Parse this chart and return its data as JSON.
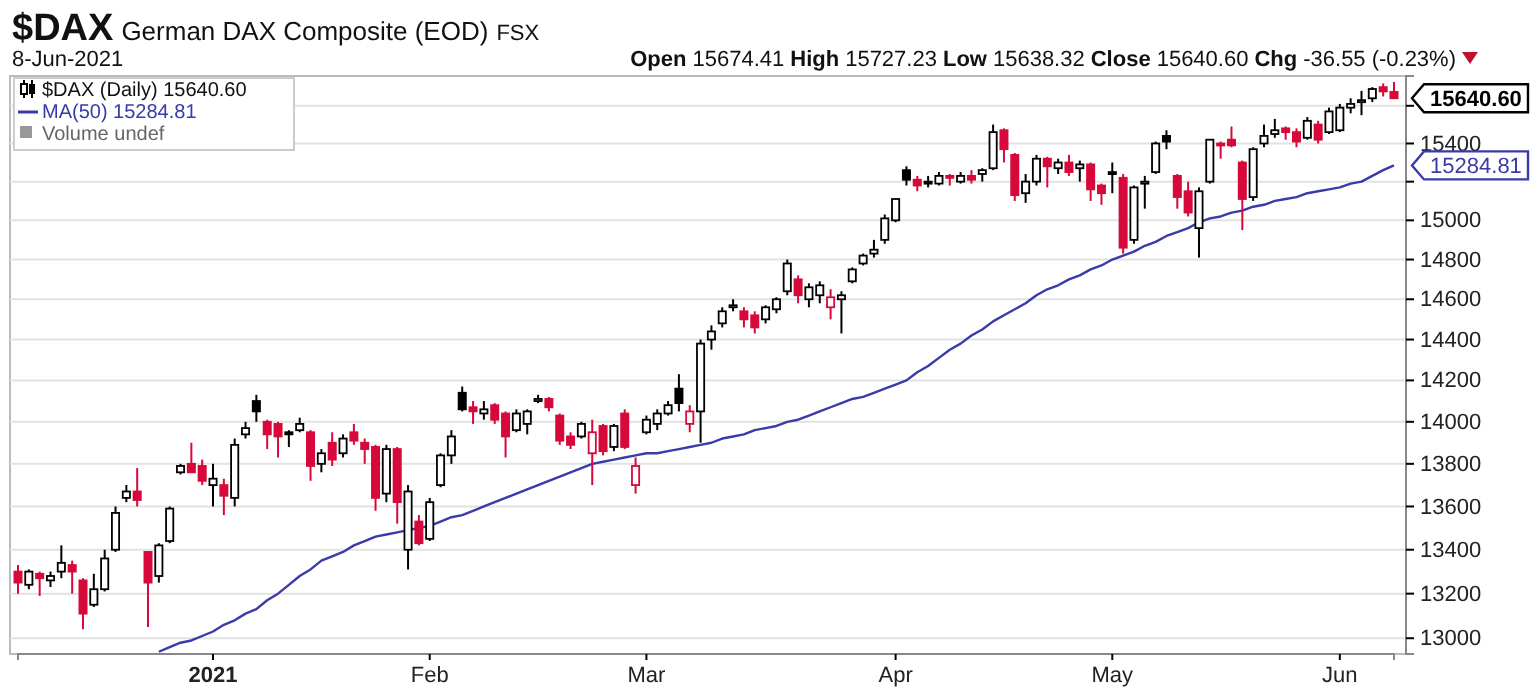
{
  "chart_data": {
    "type": "candlestick",
    "title": "$DAX German DAX Composite (EOD) FSX",
    "subtitle": "8-Jun-2021",
    "annotations": [
      "Open 15674.41 High 15727.23 Low 15638.32 Close 15640.60 Chg -36.55 (-0.23%)",
      "Volume undef",
      "15640.60",
      "15284.81"
    ],
    "categories": [
      null,
      null,
      null,
      null,
      null,
      null,
      null,
      null,
      null,
      null,
      null,
      null,
      null,
      null,
      null,
      null,
      null,
      null,
      "2021",
      null,
      null,
      null,
      null,
      null,
      null,
      null,
      null,
      null,
      null,
      null,
      null,
      null,
      null,
      null,
      null,
      null,
      null,
      null,
      "Feb",
      null,
      null,
      null,
      null,
      null,
      null,
      null,
      null,
      null,
      null,
      null,
      null,
      null,
      null,
      null,
      null,
      null,
      null,
      null,
      "Mar",
      null,
      null,
      null,
      null,
      null,
      null,
      null,
      null,
      null,
      null,
      null,
      null,
      null,
      null,
      null,
      null,
      null,
      null,
      null,
      null,
      null,
      null,
      "Apr",
      null,
      null,
      null,
      null,
      null,
      null,
      null,
      null,
      null,
      null,
      null,
      null,
      null,
      null,
      null,
      null,
      null,
      null,
      null,
      "May",
      null,
      null,
      null,
      null,
      null,
      null,
      null,
      null,
      null,
      null,
      null,
      null,
      null,
      null,
      null,
      null,
      null,
      null,
      null,
      null,
      "Jun",
      null,
      null,
      null,
      null,
      null
    ],
    "ylim": [
      12930,
      15760
    ],
    "log": true,
    "grid": "y",
    "legend": "top left",
    "yticks": [
      13000,
      13200,
      13400,
      13600,
      13800,
      14000,
      14200,
      14400,
      14600,
      14800,
      15000,
      {
        "value": 15200,
        "label": null
      },
      15400,
      {
        "value": 15600,
        "label": null
      }
    ],
    "series": [
      {
        "name": "$DAX (Daily) 15640.60",
        "ohlc": [
          [
            13300,
            13330,
            13200,
            13250
          ],
          [
            13240,
            13310,
            13220,
            13300
          ],
          [
            13290,
            13300,
            13190,
            13270
          ],
          [
            13260,
            13300,
            13230,
            13280
          ],
          [
            13300,
            13420,
            13270,
            13340
          ],
          [
            13330,
            13350,
            13200,
            13300
          ],
          [
            13260,
            13270,
            13040,
            13110
          ],
          [
            13150,
            13290,
            13140,
            13220
          ],
          [
            13220,
            13400,
            13210,
            13360
          ],
          [
            13400,
            13600,
            13390,
            13570
          ],
          [
            13640,
            13700,
            13620,
            13670
          ],
          [
            13670,
            13780,
            13600,
            13630
          ],
          [
            13390,
            13390,
            13050,
            13250
          ],
          [
            13280,
            13430,
            13250,
            13420
          ],
          [
            13440,
            13600,
            13430,
            13590
          ],
          [
            13760,
            13800,
            13750,
            13790
          ],
          [
            13800,
            13900,
            13760,
            13760
          ],
          [
            13790,
            13820,
            13700,
            13720
          ],
          [
            13700,
            13800,
            13600,
            13730
          ],
          [
            13700,
            13730,
            13560,
            13650
          ],
          [
            13640,
            13920,
            13600,
            13890
          ],
          [
            13940,
            14000,
            13920,
            13970
          ],
          [
            14100,
            14130,
            14000,
            14050
          ],
          [
            14000,
            14010,
            13870,
            13940
          ],
          [
            13990,
            14000,
            13830,
            13930
          ],
          [
            13950,
            13960,
            13880,
            13940
          ],
          [
            13960,
            14020,
            13950,
            13990
          ],
          [
            13950,
            13960,
            13720,
            13790
          ],
          [
            13800,
            13870,
            13760,
            13850
          ],
          [
            13900,
            13950,
            13790,
            13820
          ],
          [
            13850,
            13940,
            13830,
            13920
          ],
          [
            13950,
            13990,
            13890,
            13910
          ],
          [
            13900,
            13920,
            13800,
            13870
          ],
          [
            13880,
            13890,
            13580,
            13640
          ],
          [
            13660,
            13890,
            13620,
            13870
          ],
          [
            13870,
            13880,
            13520,
            13620
          ],
          [
            13400,
            13700,
            13310,
            13670
          ],
          [
            13530,
            13560,
            13420,
            13430
          ],
          [
            13450,
            13640,
            13440,
            13620
          ],
          [
            13700,
            13850,
            13690,
            13840
          ],
          [
            13840,
            13960,
            13800,
            13930
          ],
          [
            14140,
            14170,
            14050,
            14060
          ],
          [
            14070,
            14100,
            13990,
            14050
          ],
          [
            14040,
            14100,
            14010,
            14060
          ],
          [
            14080,
            14090,
            13990,
            14010
          ],
          [
            14040,
            14050,
            13830,
            13930
          ],
          [
            13960,
            14060,
            13950,
            14040
          ],
          [
            13990,
            14060,
            13940,
            14050
          ],
          [
            14100,
            14130,
            14090,
            14110
          ],
          [
            14110,
            14120,
            14050,
            14070
          ],
          [
            14030,
            14040,
            13890,
            13910
          ],
          [
            13930,
            13950,
            13870,
            13890
          ],
          [
            13930,
            14000,
            13920,
            13990
          ],
          [
            13850,
            14010,
            13700,
            13950
          ],
          [
            13980,
            13990,
            13840,
            13860
          ],
          [
            13880,
            13990,
            13860,
            13980
          ],
          [
            14040,
            14060,
            13870,
            13880
          ],
          [
            13700,
            13830,
            13660,
            13790
          ],
          [
            13950,
            14030,
            13940,
            14010
          ],
          [
            13990,
            14060,
            13960,
            14040
          ],
          [
            14040,
            14100,
            14030,
            14080
          ],
          [
            14160,
            14230,
            14050,
            14090
          ],
          [
            13990,
            14080,
            13950,
            14050
          ],
          [
            14050,
            14400,
            13900,
            14380
          ],
          [
            14400,
            14470,
            14350,
            14440
          ],
          [
            14480,
            14560,
            14460,
            14540
          ],
          [
            14560,
            14600,
            14540,
            14570
          ],
          [
            14540,
            14560,
            14460,
            14500
          ],
          [
            14520,
            14540,
            14430,
            14460
          ],
          [
            14500,
            14570,
            14480,
            14560
          ],
          [
            14550,
            14610,
            14530,
            14600
          ],
          [
            14640,
            14800,
            14620,
            14780
          ],
          [
            14700,
            14720,
            14580,
            14620
          ],
          [
            14600,
            14680,
            14560,
            14660
          ],
          [
            14620,
            14690,
            14580,
            14670
          ],
          [
            14560,
            14650,
            14500,
            14610
          ],
          [
            14600,
            14640,
            14430,
            14620
          ],
          [
            14690,
            14760,
            14680,
            14750
          ],
          [
            14780,
            14830,
            14770,
            14820
          ],
          [
            14830,
            14900,
            14810,
            14850
          ],
          [
            14900,
            15030,
            14880,
            15010
          ],
          [
            15000,
            15110,
            14990,
            15110
          ],
          [
            15260,
            15280,
            15180,
            15210
          ],
          [
            15210,
            15230,
            15150,
            15180
          ],
          [
            15200,
            15230,
            15170,
            15200
          ],
          [
            15190,
            15250,
            15180,
            15230
          ],
          [
            15230,
            15240,
            15180,
            15220
          ],
          [
            15200,
            15250,
            15190,
            15230
          ],
          [
            15230,
            15260,
            15190,
            15210
          ],
          [
            15240,
            15270,
            15200,
            15260
          ],
          [
            15270,
            15500,
            15260,
            15460
          ],
          [
            15470,
            15480,
            15300,
            15370
          ],
          [
            15340,
            15350,
            15100,
            15130
          ],
          [
            15140,
            15240,
            15090,
            15200
          ],
          [
            15200,
            15340,
            15180,
            15320
          ],
          [
            15320,
            15330,
            15170,
            15280
          ],
          [
            15270,
            15320,
            15240,
            15300
          ],
          [
            15300,
            15340,
            15230,
            15250
          ],
          [
            15270,
            15310,
            15200,
            15290
          ],
          [
            15290,
            15300,
            15100,
            15160
          ],
          [
            15180,
            15190,
            15080,
            15140
          ],
          [
            15250,
            15300,
            15140,
            15240
          ],
          [
            15220,
            15240,
            14830,
            14860
          ],
          [
            14900,
            15180,
            14880,
            15170
          ],
          [
            15190,
            15230,
            15060,
            15200
          ],
          [
            15250,
            15410,
            15240,
            15400
          ],
          [
            15440,
            15470,
            15370,
            15410
          ],
          [
            15230,
            15240,
            15060,
            15120
          ],
          [
            15150,
            15200,
            15020,
            15040
          ],
          [
            14960,
            15170,
            14810,
            15150
          ],
          [
            15200,
            15420,
            15190,
            15420
          ],
          [
            15400,
            15410,
            15320,
            15400
          ],
          [
            15420,
            15490,
            15380,
            15390
          ],
          [
            15300,
            15310,
            14950,
            15110
          ],
          [
            15120,
            15380,
            15100,
            15370
          ],
          [
            15400,
            15500,
            15380,
            15440
          ],
          [
            15450,
            15530,
            15430,
            15470
          ],
          [
            15480,
            15490,
            15420,
            15460
          ],
          [
            15460,
            15480,
            15380,
            15410
          ],
          [
            15430,
            15540,
            15420,
            15520
          ],
          [
            15500,
            15520,
            15400,
            15420
          ],
          [
            15460,
            15590,
            15450,
            15570
          ],
          [
            15470,
            15610,
            15460,
            15590
          ],
          [
            15590,
            15640,
            15560,
            15610
          ],
          [
            15620,
            15680,
            15550,
            15630
          ],
          [
            15640,
            15700,
            15620,
            15690
          ],
          [
            15700,
            15720,
            15650,
            15677.15
          ],
          [
            15674.41,
            15727.23,
            15638.32,
            15640.6
          ]
        ],
        "colors": [
          "#d6093a",
          "#000000",
          "#d6093a",
          "#000000",
          "#000000",
          "#d6093a",
          "#d6093a",
          "#000000",
          "#000000",
          "#000000",
          "#000000",
          "#d6093a",
          "#d6093a",
          "#000000",
          "#000000",
          "#000000",
          "#d6093a",
          "#d6093a",
          "#000000",
          "#d6093a",
          "#000000",
          "#000000",
          "#000000",
          "#d6093a",
          "#d6093a",
          "#000000",
          "#000000",
          "#d6093a",
          "#000000",
          "#d6093a",
          "#000000",
          "#d6093a",
          "#d6093a",
          "#d6093a",
          "#000000",
          "#d6093a",
          "#000000",
          "#d6093a",
          "#000000",
          "#000000",
          "#000000",
          "#000000",
          "#d6093a",
          "#000000",
          "#d6093a",
          "#d6093a",
          "#000000",
          "#000000",
          "#000000",
          "#d6093a",
          "#d6093a",
          "#d6093a",
          "#000000",
          "#d6093a",
          "#d6093a",
          "#000000",
          "#d6093a",
          "#d6093a",
          "#000000",
          "#000000",
          "#000000",
          "#000000",
          "#d6093a",
          "#000000",
          "#000000",
          "#000000",
          "#000000",
          "#d6093a",
          "#d6093a",
          "#000000",
          "#000000",
          "#000000",
          "#d6093a",
          "#000000",
          "#000000",
          "#d6093a",
          "#000000",
          "#000000",
          "#000000",
          "#000000",
          "#000000",
          "#000000",
          "#000000",
          "#d6093a",
          "#000000",
          "#000000",
          "#d6093a",
          "#000000",
          "#d6093a",
          "#000000",
          "#000000",
          "#d6093a",
          "#d6093a",
          "#000000",
          "#000000",
          "#d6093a",
          "#000000",
          "#d6093a",
          "#000000",
          "#d6093a",
          "#d6093a",
          "#000000",
          "#d6093a",
          "#000000",
          "#000000",
          "#000000",
          "#000000",
          "#d6093a",
          "#d6093a",
          "#000000",
          "#000000",
          "#d6093a",
          "#d6093a",
          "#d6093a",
          "#000000",
          "#000000",
          "#000000",
          "#d6093a",
          "#d6093a",
          "#000000",
          "#d6093a",
          "#000000",
          "#000000",
          "#000000",
          "#000000",
          "#000000",
          "#d6093a",
          "#d6093a"
        ]
      },
      {
        "type": "line",
        "name": "MA(50) 15284.81",
        "color": "#3a3aa8",
        "values": [
          null,
          null,
          null,
          null,
          null,
          null,
          null,
          null,
          null,
          null,
          null,
          null,
          null,
          12940,
          12960,
          12980,
          12990,
          13010,
          13030,
          13060,
          13080,
          13110,
          13130,
          13170,
          13200,
          13240,
          13280,
          13310,
          13350,
          13370,
          13390,
          13420,
          13440,
          13460,
          13470,
          13480,
          13490,
          13500,
          13510,
          13530,
          13550,
          13560,
          13580,
          13600,
          13620,
          13640,
          13660,
          13680,
          13700,
          13720,
          13740,
          13760,
          13780,
          13800,
          13810,
          13820,
          13830,
          13840,
          13850,
          13850,
          13860,
          13870,
          13880,
          13890,
          13900,
          13920,
          13930,
          13940,
          13960,
          13970,
          13980,
          14000,
          14010,
          14030,
          14050,
          14070,
          14090,
          14110,
          14120,
          14140,
          14160,
          14180,
          14200,
          14240,
          14270,
          14310,
          14350,
          14380,
          14420,
          14450,
          14490,
          14520,
          14550,
          14580,
          14620,
          14650,
          14670,
          14700,
          14720,
          14750,
          14770,
          14800,
          14820,
          14840,
          14870,
          14890,
          14920,
          14940,
          14960,
          14990,
          15010,
          15020,
          15040,
          15050,
          15070,
          15080,
          15100,
          15110,
          15120,
          15140,
          15150,
          15160,
          15170,
          15190,
          15200,
          15230,
          15260,
          15284.81
        ]
      }
    ]
  }
}
